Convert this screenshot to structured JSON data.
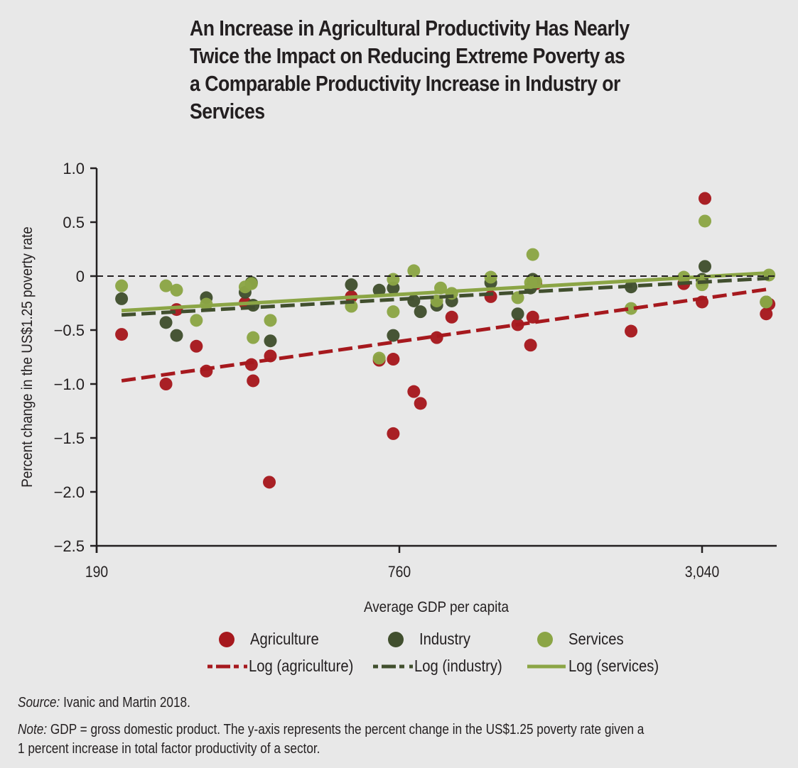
{
  "title_lines": [
    "An Increase in Agricultural Productivity Has Nearly",
    "Twice the Impact on Reducing Extreme Poverty as",
    "a Comparable Productivity Increase in Industry or",
    "Services"
  ],
  "legend": {
    "agriculture": "Agriculture",
    "industry": "Industry",
    "services": "Services",
    "log_agriculture": "Log (agriculture)",
    "log_industry": "Log (industry)",
    "log_services": "Log (services)"
  },
  "footer": {
    "source_label": "Source:",
    "source_text": " Ivanic and Martin 2018.",
    "note_label": "Note:",
    "note_text_line1": " GDP = gross domestic product. The y-axis represents the percent change in the US$1.25 poverty rate given a",
    "note_text_line2": "1 percent increase in total factor productivity of a sector."
  },
  "colors": {
    "agriculture": "#a6191e",
    "industry": "#414f2e",
    "services": "#8ba545",
    "axis": "#231f20",
    "background": "#e8e8e8"
  },
  "chart_data": {
    "type": "scatter",
    "title": "An Increase in Agricultural Productivity Has Nearly Twice the Impact on Reducing Extreme Poverty as a Comparable Productivity Increase in Industry or Services",
    "xlabel": "Average GDP per capita",
    "ylabel": "Percent change in the US$1.25 poverty rate",
    "x_scale": "log",
    "xlim": [
      190,
      4300
    ],
    "ylim": [
      -2.5,
      1.0
    ],
    "x_ticks": [
      190,
      760,
      3040
    ],
    "x_tick_labels": [
      "190",
      "760",
      "3,040"
    ],
    "y_ticks": [
      1.0,
      0.5,
      0,
      -0.5,
      -1.0,
      -1.5,
      -2.0,
      -2.5
    ],
    "y_tick_labels": [
      "1.0",
      "0.5",
      "0",
      "−0.5",
      "−1.0",
      "−1.5",
      "−2.0",
      "−2.5"
    ],
    "reference_line": {
      "y": 0,
      "style": "dashed"
    },
    "grid": false,
    "legend_position": "bottom",
    "series": [
      {
        "name": "Agriculture",
        "color_key": "agriculture",
        "points": [
          [
            213,
            -0.54
          ],
          [
            261,
            -1.0
          ],
          [
            274,
            -0.31
          ],
          [
            300,
            -0.65
          ],
          [
            314,
            -0.88
          ],
          [
            375,
            -0.25
          ],
          [
            386,
            -0.82
          ],
          [
            389,
            -0.97
          ],
          [
            421,
            -0.74
          ],
          [
            419,
            -1.91
          ],
          [
            610,
            -0.19
          ],
          [
            693,
            -0.78
          ],
          [
            739,
            -0.77
          ],
          [
            739,
            -1.46
          ],
          [
            812,
            -1.07
          ],
          [
            837,
            -1.18
          ],
          [
            902,
            -0.57
          ],
          [
            966,
            -0.38
          ],
          [
            1155,
            -0.19
          ],
          [
            1307,
            -0.45
          ],
          [
            1386,
            -0.64
          ],
          [
            1400,
            -0.38
          ],
          [
            1420,
            -0.07
          ],
          [
            2196,
            -0.51
          ],
          [
            2796,
            -0.07
          ],
          [
            3040,
            -0.24
          ],
          [
            3080,
            0.72
          ],
          [
            4078,
            -0.35
          ],
          [
            4130,
            -0.26
          ]
        ]
      },
      {
        "name": "Industry",
        "color_key": "industry",
        "points": [
          [
            213,
            -0.21
          ],
          [
            261,
            -0.43
          ],
          [
            274,
            -0.55
          ],
          [
            314,
            -0.2
          ],
          [
            375,
            -0.15
          ],
          [
            386,
            -0.06
          ],
          [
            389,
            -0.27
          ],
          [
            421,
            -0.6
          ],
          [
            610,
            -0.08
          ],
          [
            693,
            -0.13
          ],
          [
            739,
            -0.11
          ],
          [
            739,
            -0.55
          ],
          [
            812,
            -0.23
          ],
          [
            837,
            -0.33
          ],
          [
            902,
            -0.27
          ],
          [
            966,
            -0.23
          ],
          [
            1155,
            -0.06
          ],
          [
            1307,
            -0.35
          ],
          [
            1386,
            -0.11
          ],
          [
            1400,
            -0.03
          ],
          [
            2196,
            -0.1
          ],
          [
            3040,
            -0.03
          ],
          [
            3080,
            0.09
          ],
          [
            4078,
            -0.24
          ]
        ]
      },
      {
        "name": "Services",
        "color_key": "services",
        "points": [
          [
            213,
            -0.09
          ],
          [
            261,
            -0.09
          ],
          [
            274,
            -0.13
          ],
          [
            300,
            -0.41
          ],
          [
            314,
            -0.26
          ],
          [
            375,
            -0.1
          ],
          [
            386,
            -0.07
          ],
          [
            389,
            -0.57
          ],
          [
            421,
            -0.41
          ],
          [
            610,
            -0.28
          ],
          [
            693,
            -0.76
          ],
          [
            739,
            -0.03
          ],
          [
            739,
            -0.33
          ],
          [
            812,
            0.05
          ],
          [
            902,
            -0.23
          ],
          [
            918,
            -0.11
          ],
          [
            966,
            -0.16
          ],
          [
            1155,
            -0.01
          ],
          [
            1307,
            -0.2
          ],
          [
            1386,
            -0.06
          ],
          [
            1400,
            0.2
          ],
          [
            1420,
            -0.05
          ],
          [
            2196,
            -0.3
          ],
          [
            2796,
            -0.01
          ],
          [
            3040,
            -0.08
          ],
          [
            3080,
            0.51
          ],
          [
            4078,
            -0.24
          ],
          [
            4130,
            0.01
          ]
        ]
      }
    ],
    "trend_lines": [
      {
        "name": "Log (agriculture)",
        "color_key": "agriculture",
        "style": "dashed",
        "from": [
          213,
          -0.97
        ],
        "to": [
          4130,
          -0.12
        ]
      },
      {
        "name": "Log (industry)",
        "color_key": "industry",
        "style": "dashed",
        "from": [
          213,
          -0.36
        ],
        "to": [
          4130,
          -0.02
        ]
      },
      {
        "name": "Log (services)",
        "color_key": "services",
        "style": "solid",
        "from": [
          213,
          -0.32
        ],
        "to": [
          4130,
          0.03
        ]
      }
    ]
  }
}
